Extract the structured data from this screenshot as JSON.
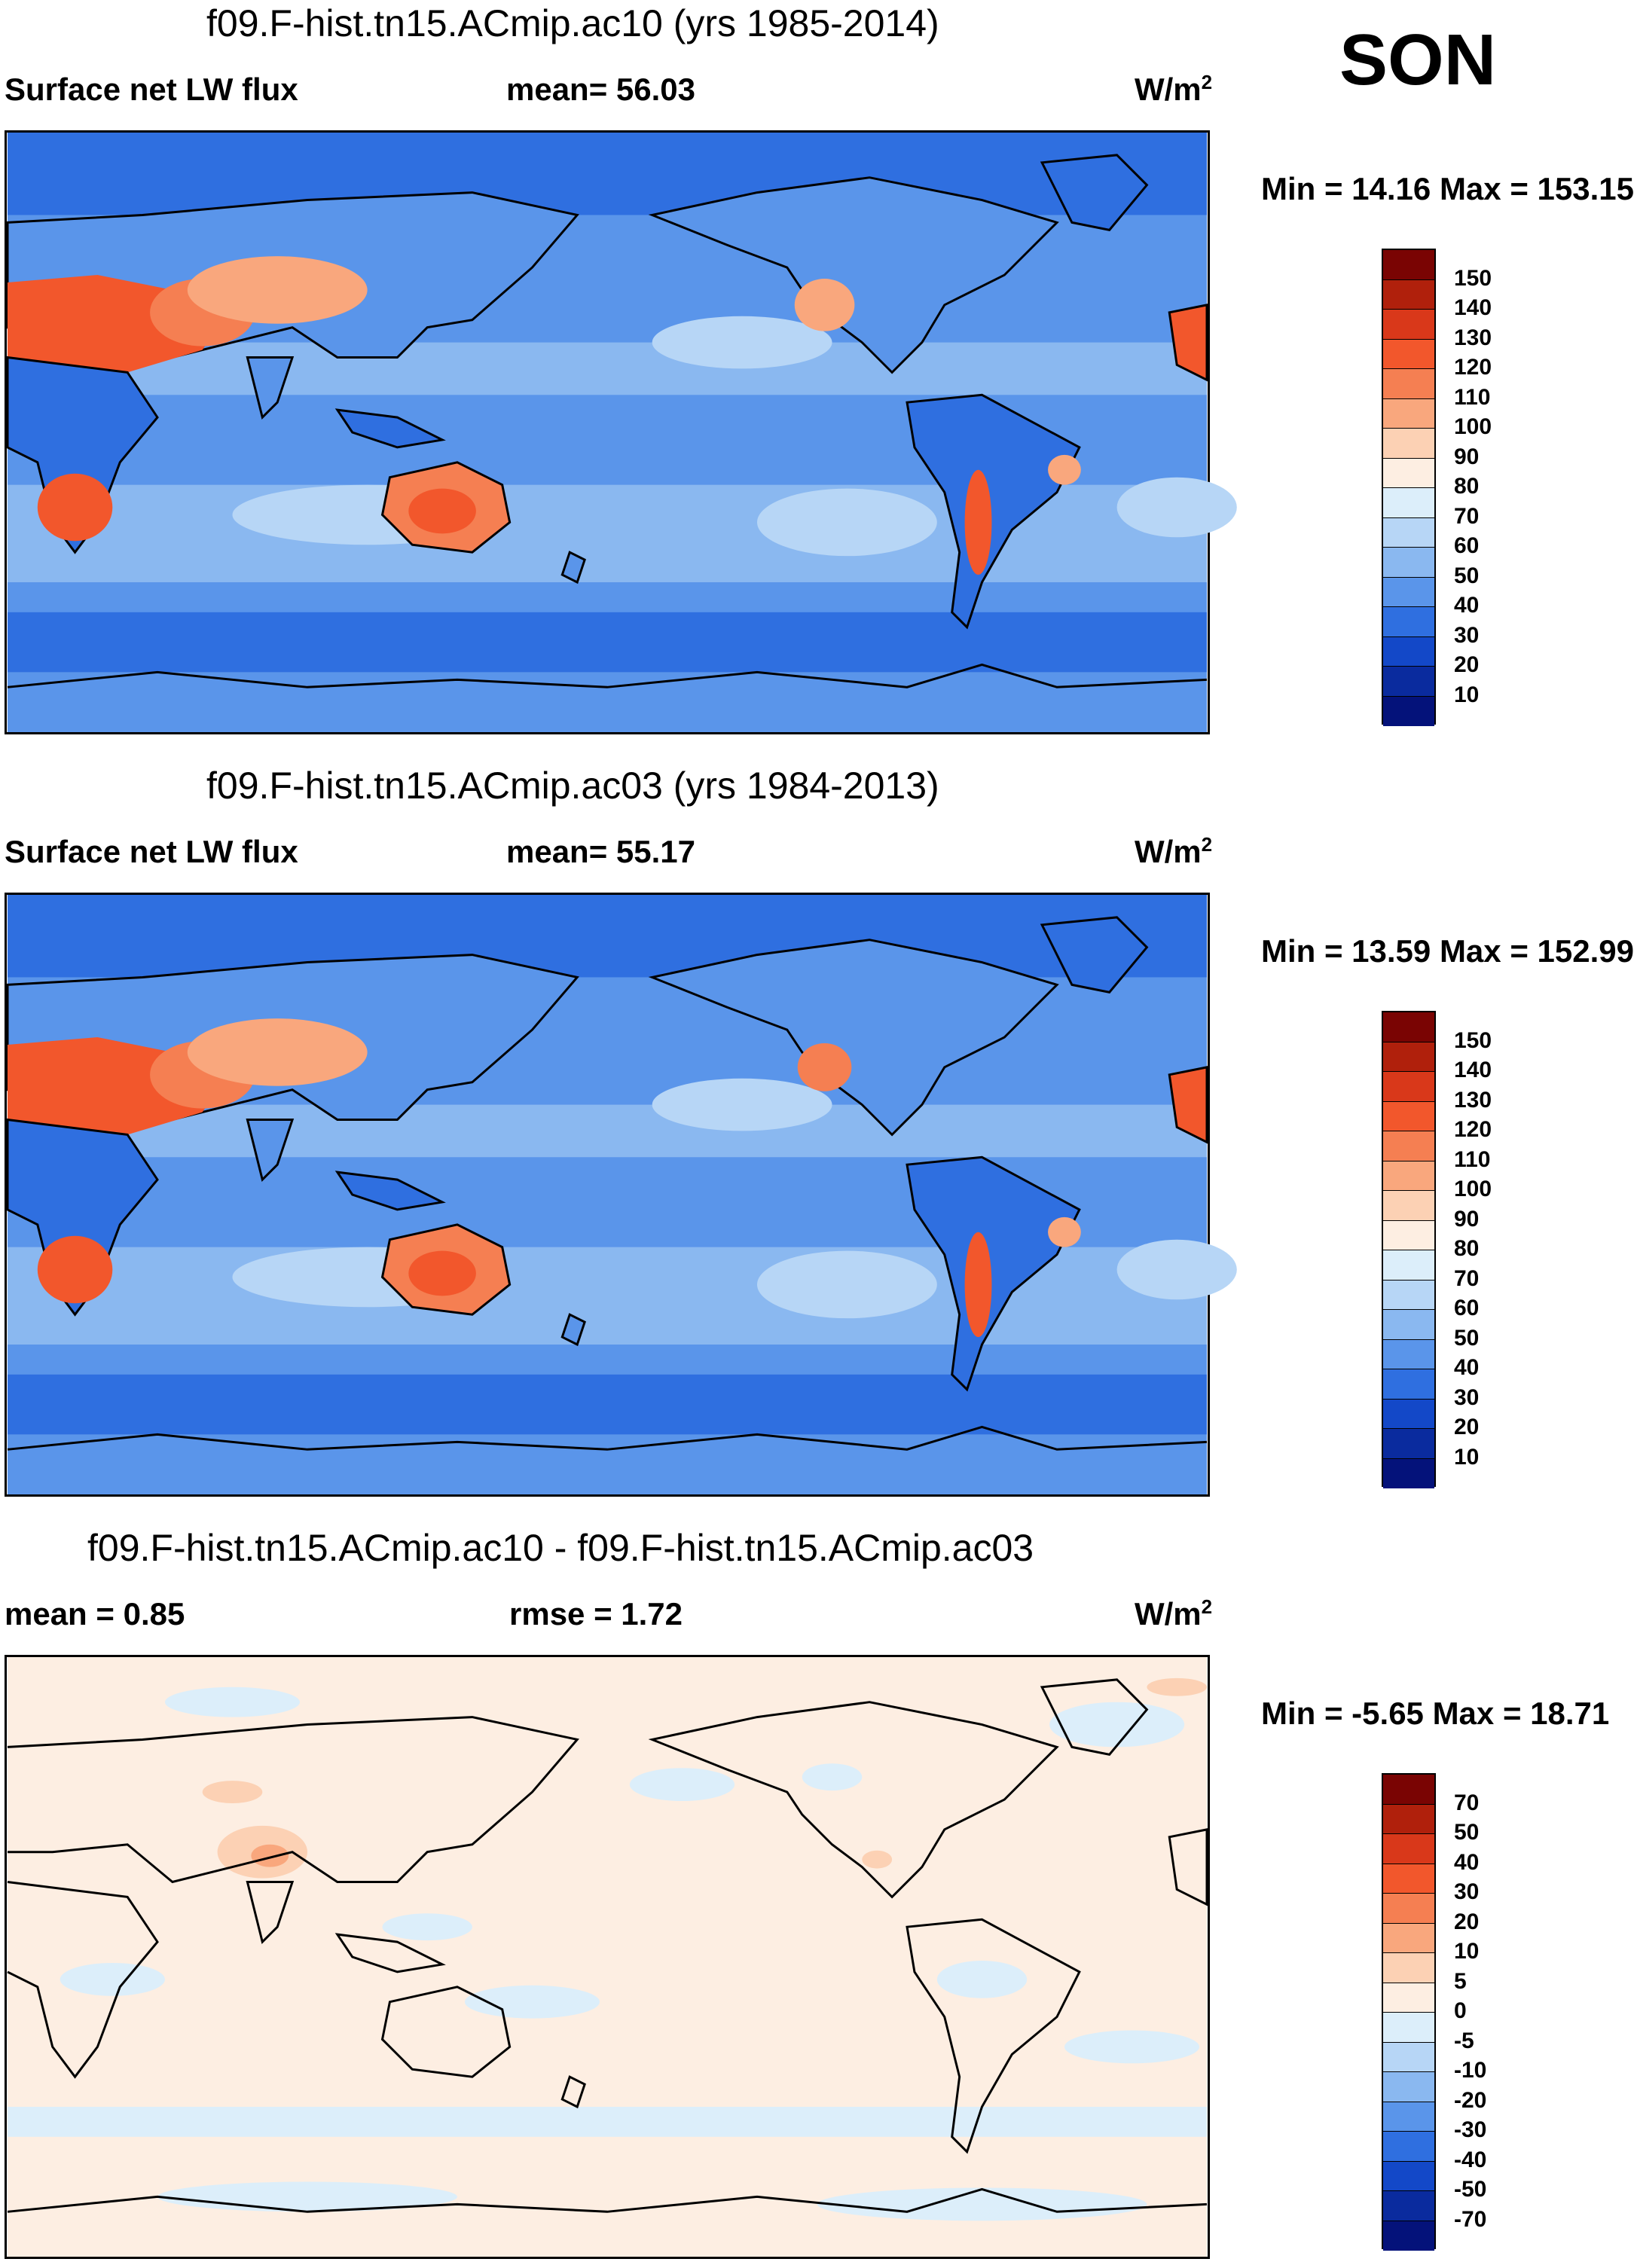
{
  "season": "SON",
  "panels": [
    {
      "title": "f09.F-hist.tn15.ACmip.ac10 (yrs 1985-2014)",
      "left_label": "Surface net LW flux",
      "mid_label": "mean=  56.03",
      "units": "W/m",
      "units_exp": "2",
      "minmax": "Min =  14.16 Max = 153.15",
      "colorbar": {
        "colors": [
          "#7a0403",
          "#b0200c",
          "#d9381a",
          "#f2572c",
          "#f57f52",
          "#f9a77d",
          "#fcd1b4",
          "#fdeee2",
          "#dceefa",
          "#b7d6f6",
          "#8ab8f0",
          "#5a95ea",
          "#2f6fe0",
          "#1348c8",
          "#0a2b9e",
          "#04127a"
        ],
        "labels": [
          "150",
          "140",
          "130",
          "120",
          "110",
          "100",
          "90",
          "80",
          "70",
          "60",
          "50",
          "40",
          "30",
          "20",
          "10"
        ]
      }
    },
    {
      "title": "f09.F-hist.tn15.ACmip.ac03 (yrs 1984-2013)",
      "left_label": "Surface net LW flux",
      "mid_label": "mean=  55.17",
      "units": "W/m",
      "units_exp": "2",
      "minmax": "Min =  13.59 Max = 152.99",
      "colorbar": {
        "colors": [
          "#7a0403",
          "#b0200c",
          "#d9381a",
          "#f2572c",
          "#f57f52",
          "#f9a77d",
          "#fcd1b4",
          "#fdeee2",
          "#dceefa",
          "#b7d6f6",
          "#8ab8f0",
          "#5a95ea",
          "#2f6fe0",
          "#1348c8",
          "#0a2b9e",
          "#04127a"
        ],
        "labels": [
          "150",
          "140",
          "130",
          "120",
          "110",
          "100",
          "90",
          "80",
          "70",
          "60",
          "50",
          "40",
          "30",
          "20",
          "10"
        ]
      }
    },
    {
      "title": "f09.F-hist.tn15.ACmip.ac10 - f09.F-hist.tn15.ACmip.ac03",
      "left_label": "mean =   0.85",
      "mid_label": "rmse =    1.72",
      "units": "W/m",
      "units_exp": "2",
      "minmax": "Min =  -5.65 Max =  18.71",
      "colorbar": {
        "colors": [
          "#7a0403",
          "#b0200c",
          "#d9381a",
          "#f2572c",
          "#f57f52",
          "#f9a77d",
          "#fcd1b4",
          "#fdeee2",
          "#dceefa",
          "#b7d6f6",
          "#8ab8f0",
          "#5a95ea",
          "#2f6fe0",
          "#1348c8",
          "#0a2b9e",
          "#04127a"
        ],
        "labels": [
          "70",
          "50",
          "40",
          "30",
          "20",
          "10",
          "5",
          "0",
          "-5",
          "-10",
          "-20",
          "-30",
          "-40",
          "-50",
          "-70"
        ]
      }
    }
  ],
  "colors": {
    "ocean_dark": "#2f6fe0",
    "ocean_mid": "#5a95ea",
    "ocean_light": "#8ab8f0",
    "ocean_pale": "#b7d6f6",
    "desert_hot": "#f2572c",
    "desert_warm": "#f57f52",
    "desert_mild": "#f9a77d",
    "diff_base": "#fdeee2",
    "diff_blue": "#dceefa",
    "diff_warm": "#fcd1b4"
  }
}
